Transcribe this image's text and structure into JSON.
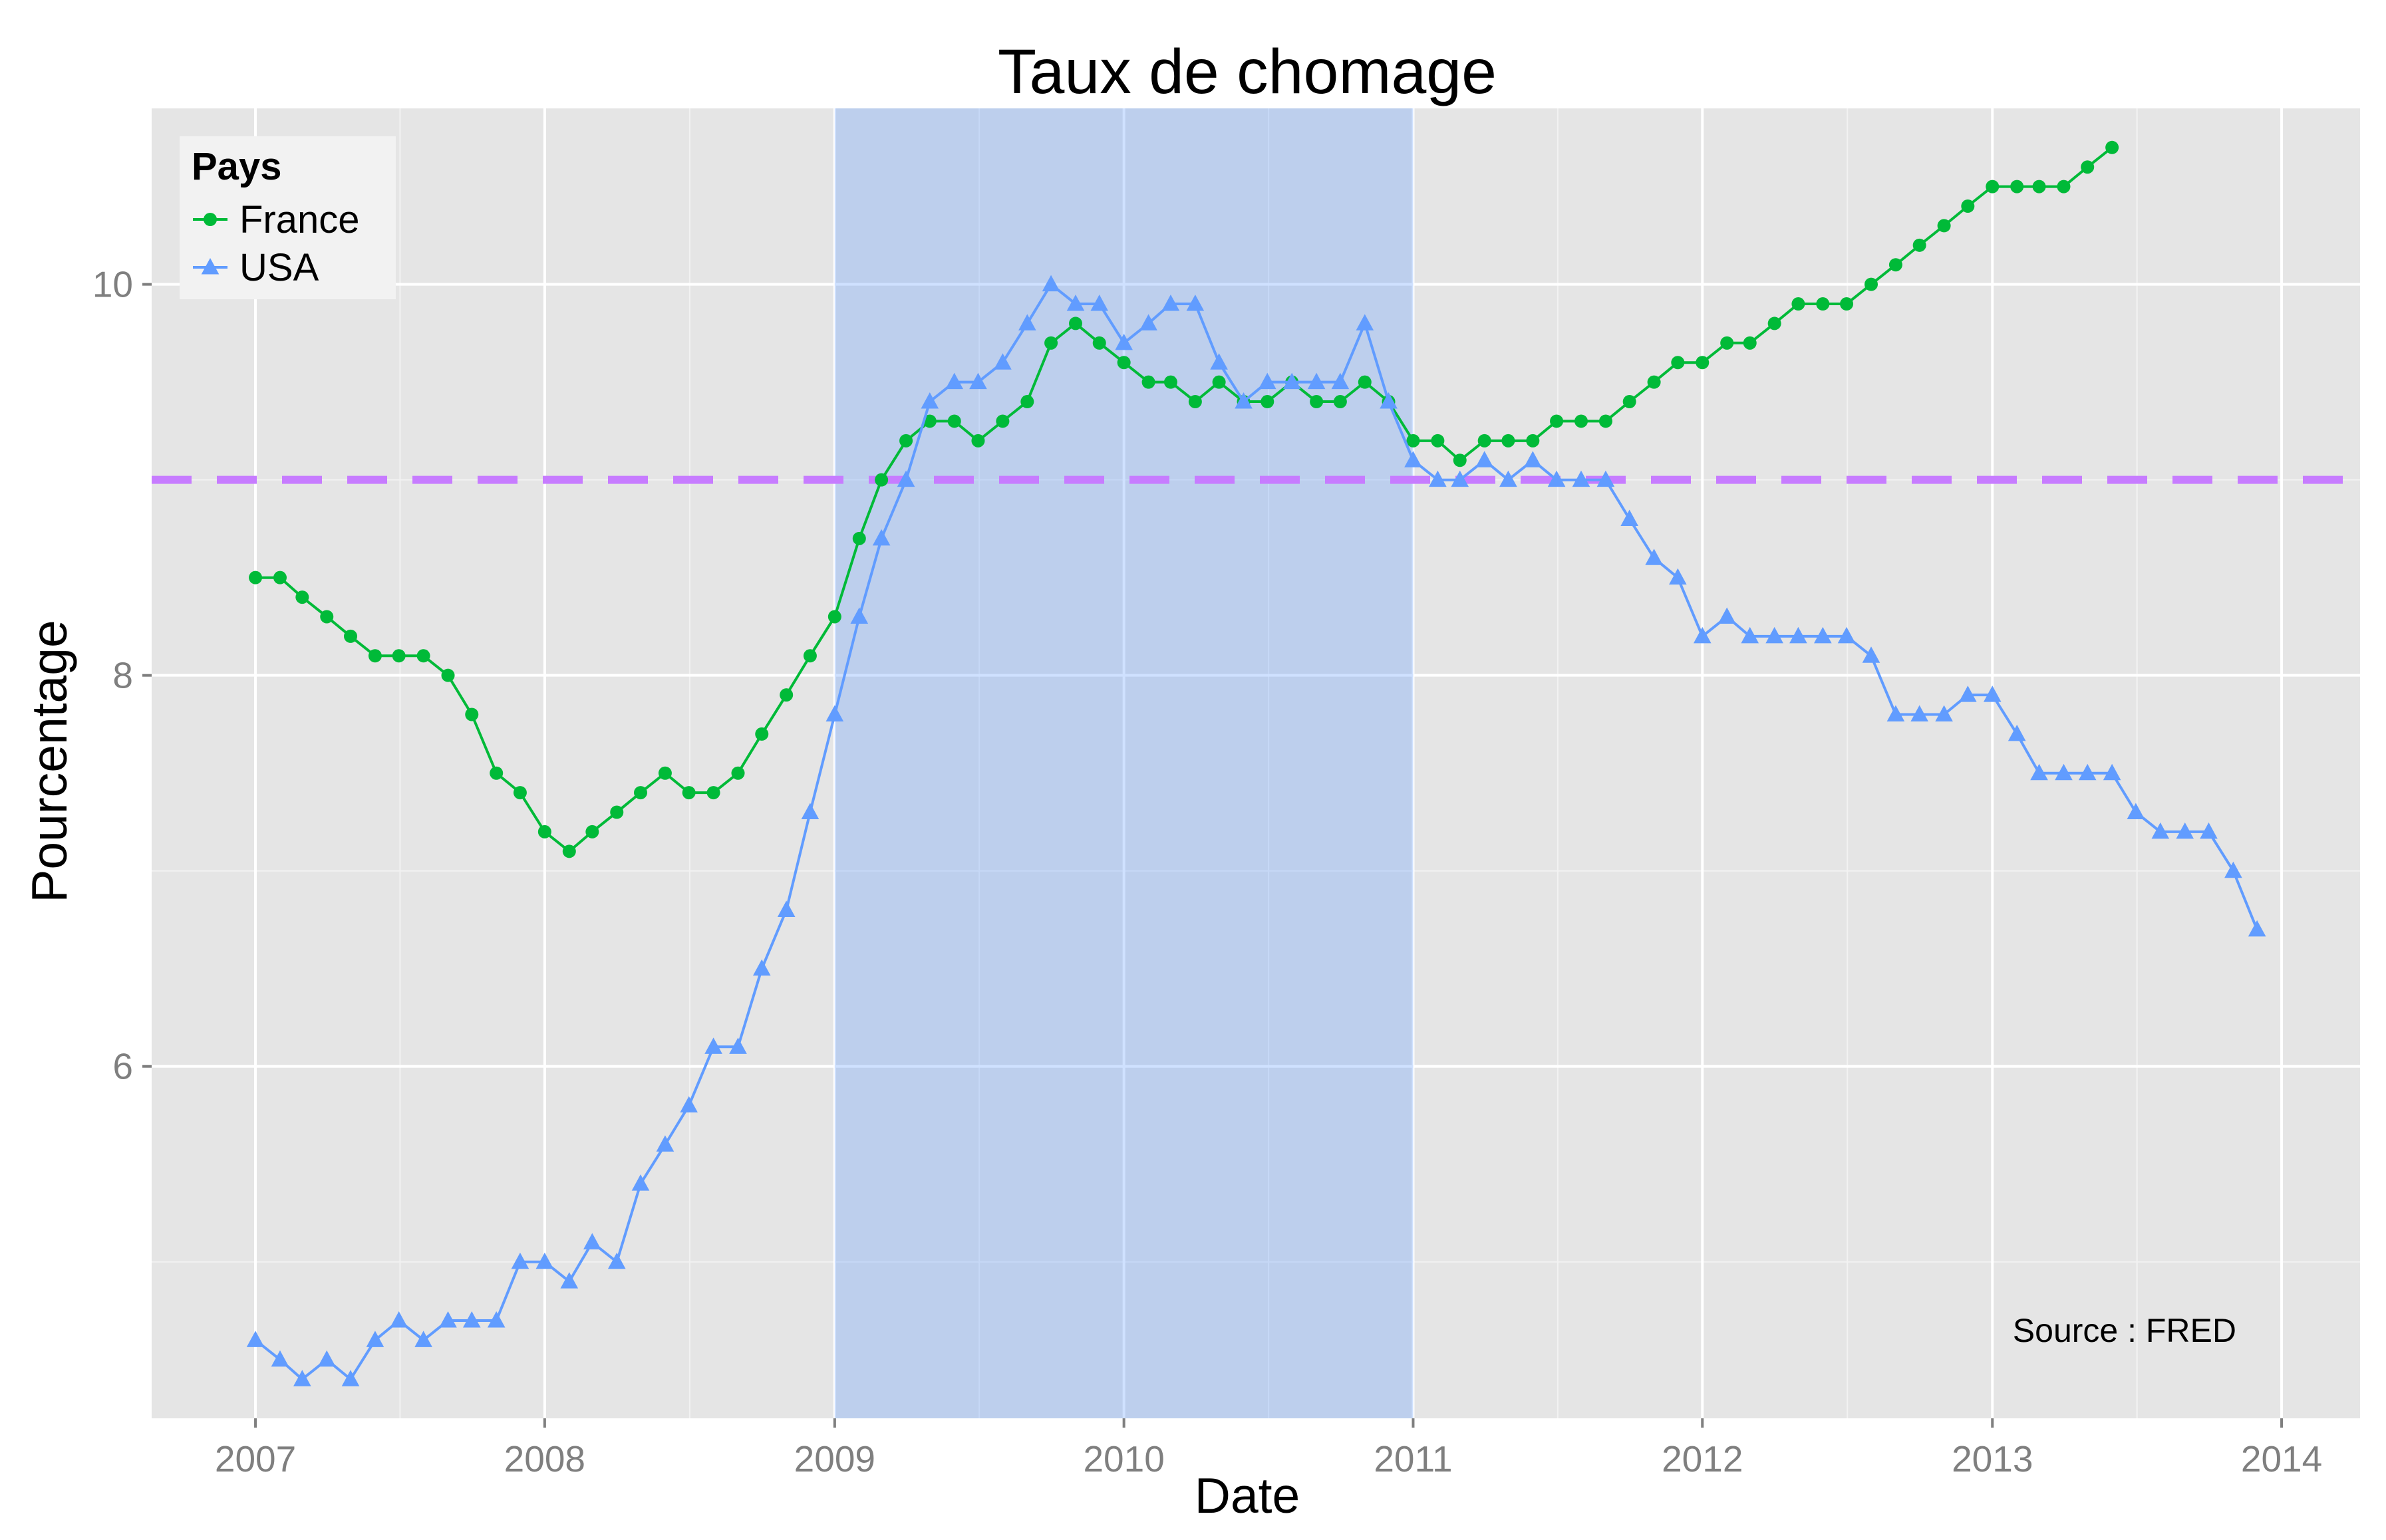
{
  "chart_data": {
    "type": "line",
    "title": "Taux de chomage",
    "xlabel": "Date",
    "ylabel": "Pourcentage",
    "x_axis": {
      "kind": "date",
      "range": [
        "2006-08-23",
        "2014-04-10"
      ],
      "ticks": [
        "2007-01-01",
        "2008-01-01",
        "2009-01-01",
        "2010-01-01",
        "2011-01-01",
        "2012-01-01",
        "2013-01-01",
        "2014-01-01"
      ],
      "tick_labels": [
        "2007",
        "2008",
        "2009",
        "2010",
        "2011",
        "2012",
        "2013",
        "2014"
      ]
    },
    "y_axis": {
      "range": [
        4.2,
        10.9
      ],
      "ticks": [
        6,
        8,
        10
      ],
      "tick_labels": [
        "6",
        "8",
        "10"
      ],
      "minor_ticks": [
        5,
        7,
        9
      ]
    },
    "grid": true,
    "background": "#e5e5e5",
    "legend": {
      "title": "Pays",
      "position": "top-left",
      "entries": [
        {
          "label": "France",
          "marker": "circle",
          "color": "#00ba38"
        },
        {
          "label": "USA",
          "marker": "triangle",
          "color": "#619cff"
        }
      ]
    },
    "shaded_region": {
      "x_start": "2009-01-01",
      "x_end": "2011-01-01",
      "color": "#619cff"
    },
    "reference_line": {
      "y": 9,
      "style": "dashed",
      "color": "#c77cff"
    },
    "annotation": "Source : FRED",
    "series": [
      {
        "name": "France",
        "color": "#00ba38",
        "marker": "circle",
        "start": "2007-01-01",
        "step": "month",
        "values": [
          8.5,
          8.5,
          8.4,
          8.3,
          8.2,
          8.1,
          8.1,
          8.1,
          8.0,
          7.8,
          7.5,
          7.4,
          7.2,
          7.1,
          7.2,
          7.3,
          7.4,
          7.5,
          7.4,
          7.4,
          7.5,
          7.7,
          7.9,
          8.1,
          8.3,
          8.7,
          9.0,
          9.2,
          9.3,
          9.3,
          9.2,
          9.3,
          9.4,
          9.7,
          9.8,
          9.7,
          9.6,
          9.5,
          9.5,
          9.4,
          9.5,
          9.4,
          9.4,
          9.5,
          9.4,
          9.4,
          9.5,
          9.4,
          9.2,
          9.2,
          9.1,
          9.2,
          9.2,
          9.2,
          9.3,
          9.3,
          9.3,
          9.4,
          9.5,
          9.6,
          9.6,
          9.7,
          9.7,
          9.8,
          9.9,
          9.9,
          9.9,
          10.0,
          10.1,
          10.2,
          10.3,
          10.4,
          10.5,
          10.5,
          10.5,
          10.5,
          10.6,
          10.7
        ]
      },
      {
        "name": "USA",
        "color": "#619cff",
        "marker": "triangle",
        "start": "2007-01-01",
        "step": "month",
        "values": [
          4.6,
          4.5,
          4.4,
          4.5,
          4.4,
          4.6,
          4.7,
          4.6,
          4.7,
          4.7,
          4.7,
          5.0,
          5.0,
          4.9,
          5.1,
          5.0,
          5.4,
          5.6,
          5.8,
          6.1,
          6.1,
          6.5,
          6.8,
          7.3,
          7.8,
          8.3,
          8.7,
          9.0,
          9.4,
          9.5,
          9.5,
          9.6,
          9.8,
          10.0,
          9.9,
          9.9,
          9.7,
          9.8,
          9.9,
          9.9,
          9.6,
          9.4,
          9.5,
          9.5,
          9.5,
          9.5,
          9.8,
          9.4,
          9.1,
          9.0,
          9.0,
          9.1,
          9.0,
          9.1,
          9.0,
          9.0,
          9.0,
          8.8,
          8.6,
          8.5,
          8.2,
          8.3,
          8.2,
          8.2,
          8.2,
          8.2,
          8.2,
          8.1,
          7.8,
          7.8,
          7.8,
          7.9,
          7.9,
          7.7,
          7.5,
          7.5,
          7.5,
          7.5,
          7.3,
          7.2,
          7.2,
          7.2,
          7.0,
          6.7
        ]
      }
    ]
  }
}
